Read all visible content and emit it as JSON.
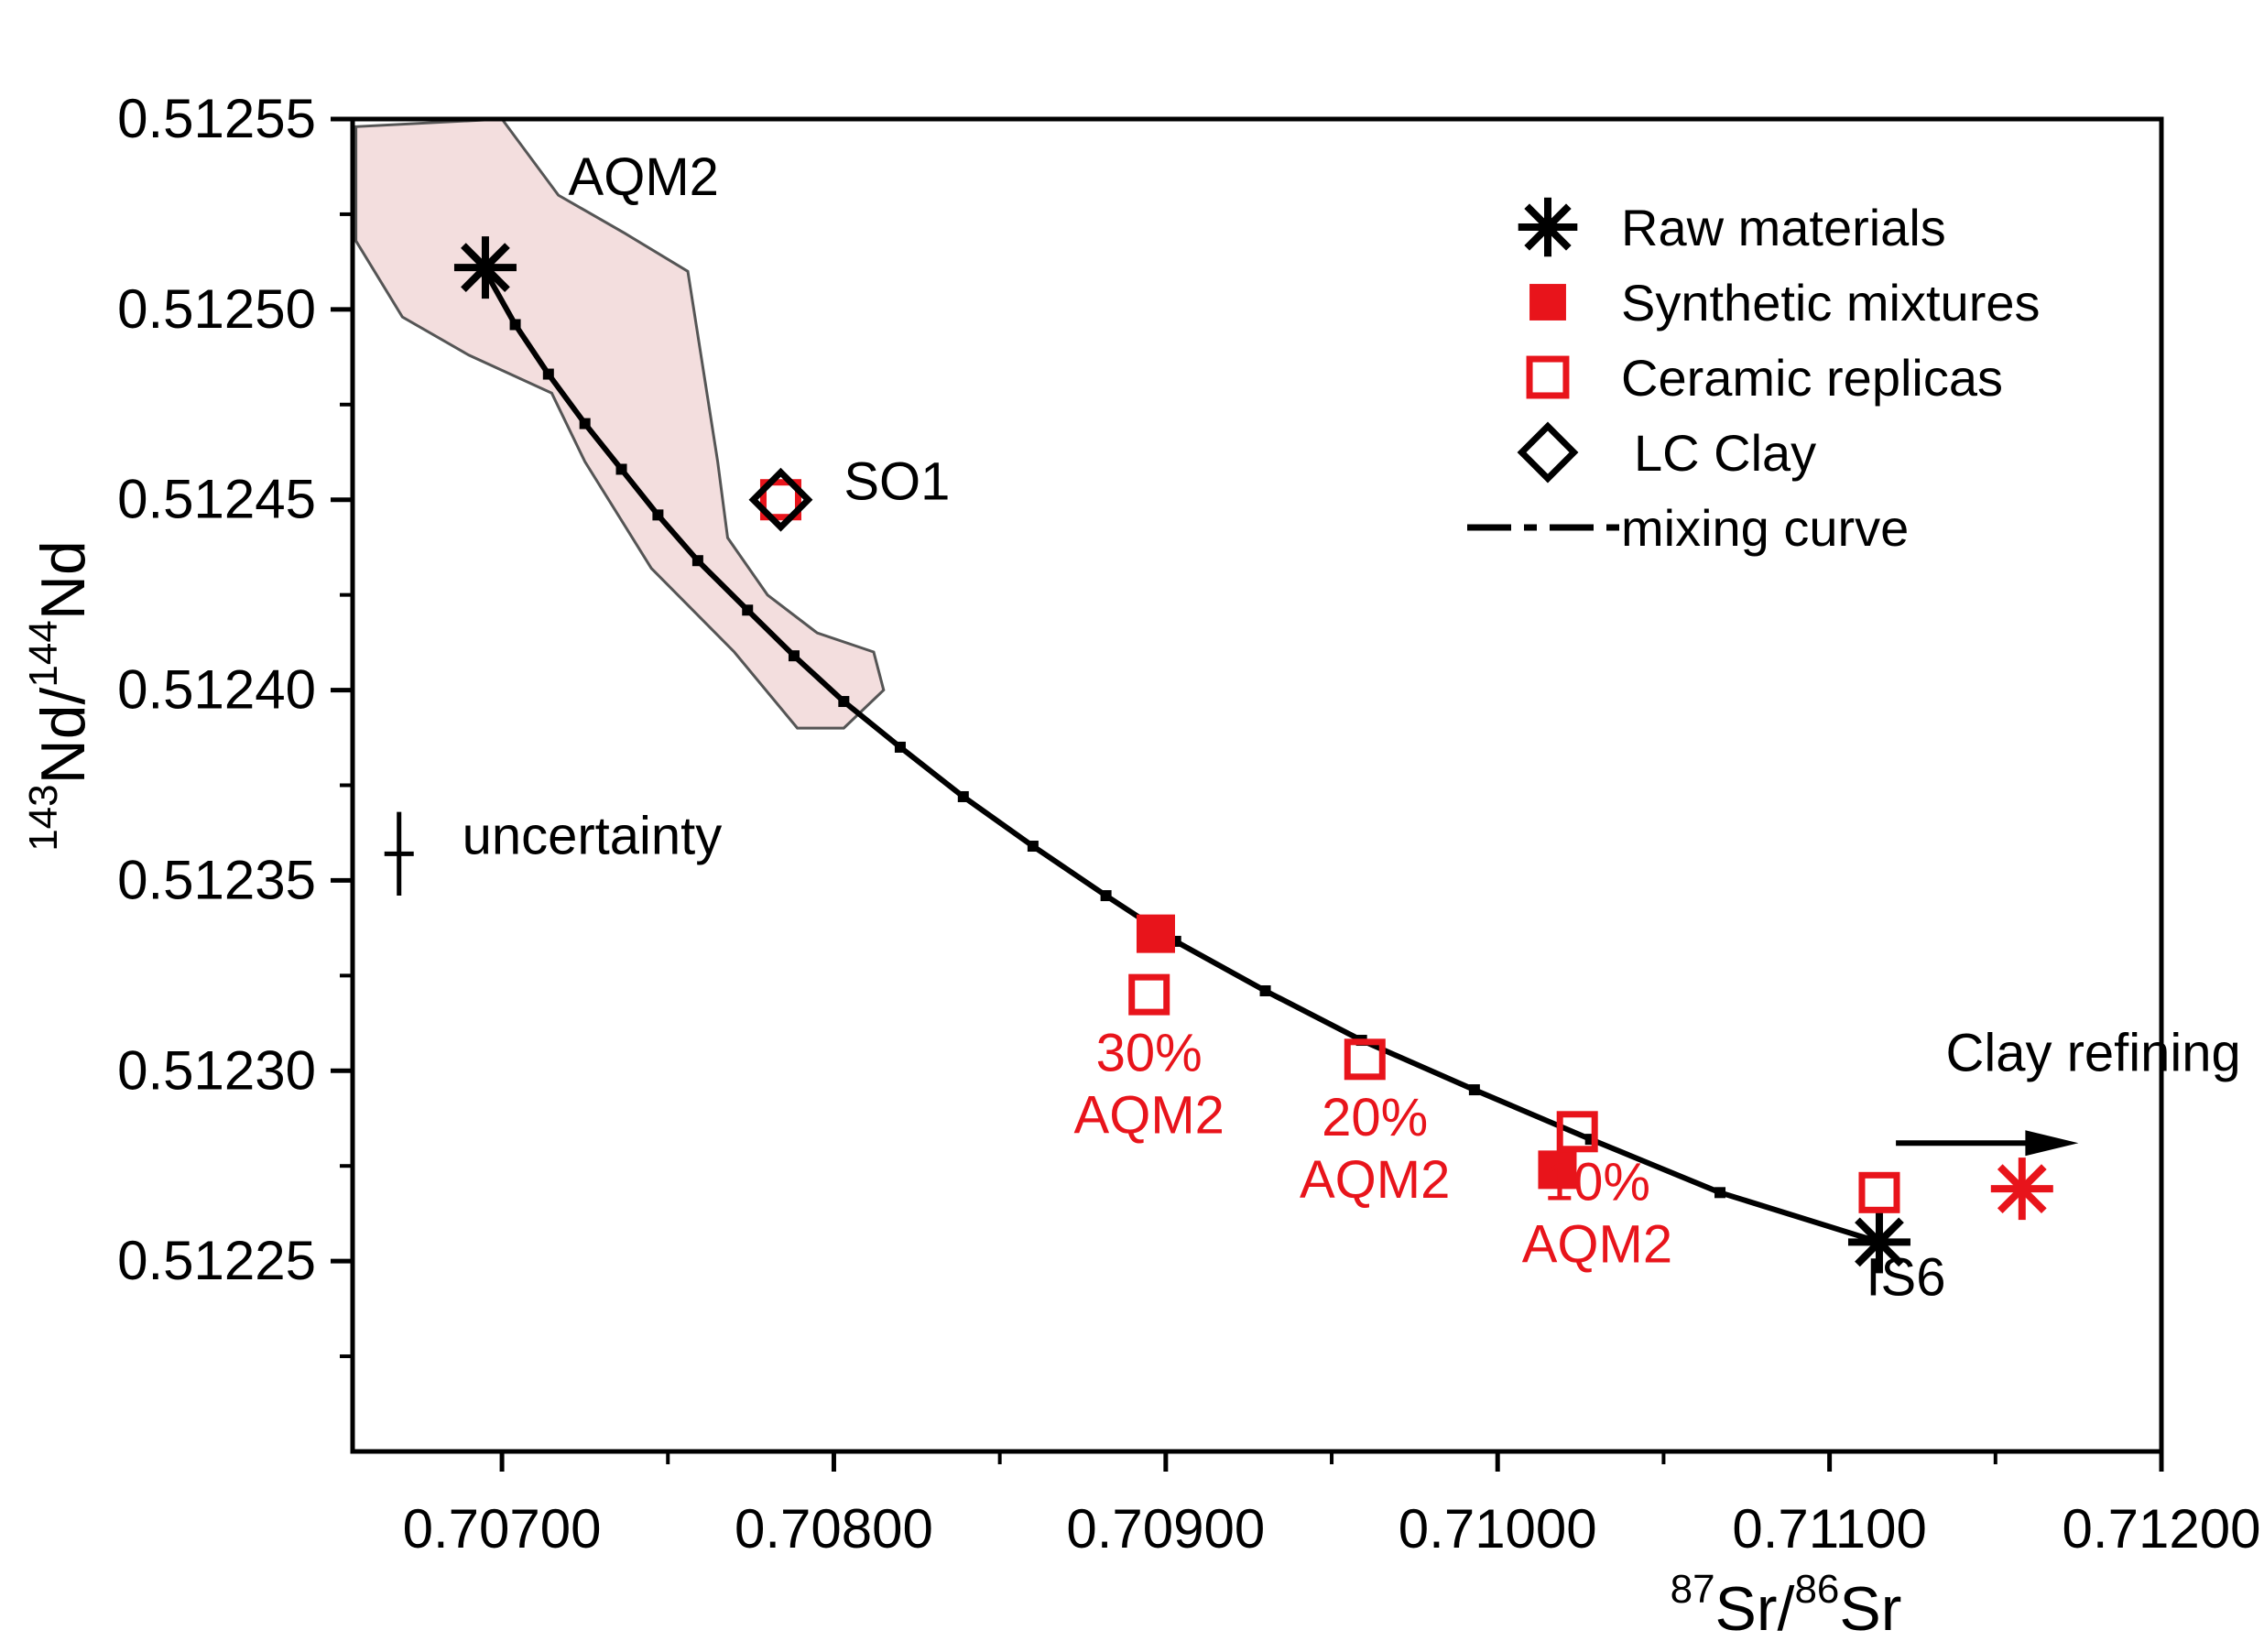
{
  "chart_data": {
    "type": "scatter",
    "xlabel": {
      "sup1": "87",
      "main1": "Sr/",
      "sup2": "86",
      "main2": "Sr"
    },
    "ylabel": {
      "sup1": "143",
      "main1": "Nd/",
      "sup2": "144",
      "main2": "Nd"
    },
    "xlim": [
      0.70655,
      0.712
    ],
    "ylim": [
      0.5122,
      0.51255
    ],
    "x_ticks": [
      "0.70700",
      "0.70800",
      "0.70900",
      "0.71000",
      "0.71100",
      "0.71200"
    ],
    "y_ticks": [
      "0.51225",
      "0.51230",
      "0.51235",
      "0.51240",
      "0.51245",
      "0.51250",
      "0.51255"
    ],
    "field": {
      "label": "AQM2",
      "fill": "#f3dede",
      "stroke": "#555555",
      "polygon": [
        [
          0.70656,
          0.512548
        ],
        [
          0.707,
          0.51255
        ],
        [
          0.70717,
          0.51253
        ],
        [
          0.70737,
          0.51252
        ],
        [
          0.70756,
          0.51251
        ],
        [
          0.70765,
          0.51246
        ],
        [
          0.70768,
          0.51244
        ],
        [
          0.7078,
          0.512425
        ],
        [
          0.70795,
          0.512415
        ],
        [
          0.70812,
          0.51241
        ],
        [
          0.70815,
          0.5124
        ],
        [
          0.70803,
          0.51239
        ],
        [
          0.70789,
          0.51239
        ],
        [
          0.7077,
          0.51241
        ],
        [
          0.70745,
          0.512432
        ],
        [
          0.70725,
          0.51246
        ],
        [
          0.70715,
          0.512478
        ],
        [
          0.7069,
          0.512488
        ],
        [
          0.7067,
          0.512498
        ],
        [
          0.70656,
          0.512518
        ]
      ]
    },
    "mixing_curve": {
      "name": "mixing curve",
      "x": [
        0.70695,
        0.70704,
        0.70714,
        0.70725,
        0.70736,
        0.70747,
        0.70759,
        0.70774,
        0.70788,
        0.70803,
        0.7082,
        0.70839,
        0.7086,
        0.70882,
        0.70903,
        0.7093,
        0.70959,
        0.70993,
        0.71028,
        0.71067,
        0.71115
      ],
      "y": [
        0.51251,
        0.512496,
        0.512483,
        0.51247,
        0.512458,
        0.512446,
        0.512434,
        0.512421,
        0.512409,
        0.512397,
        0.512385,
        0.512372,
        0.512359,
        0.512346,
        0.512334,
        0.512321,
        0.512308,
        0.512295,
        0.512282,
        0.512268,
        0.512255
      ]
    },
    "series": [
      {
        "name": "Raw materials",
        "color": "#000000",
        "marker": "asterisk",
        "points": [
          [
            0.70695,
            0.512511
          ],
          [
            0.71115,
            0.512255
          ]
        ]
      },
      {
        "name": "Synthetic mixtures",
        "color": "#e8141b",
        "marker": "filled-square",
        "points": [
          [
            0.70897,
            0.512336
          ],
          [
            0.71018,
            0.512274
          ]
        ]
      },
      {
        "name": "Ceramic replicas",
        "color": "#e8141b",
        "marker": "open-square",
        "points": [
          [
            0.70895,
            0.51232
          ],
          [
            0.7096,
            0.512303
          ],
          [
            0.71024,
            0.512284
          ],
          [
            0.71115,
            0.512268
          ],
          [
            0.70784,
            0.51245
          ]
        ]
      },
      {
        "name": "LC Clay",
        "color": "#000000",
        "marker": "open-diamond",
        "points": [
          [
            0.70784,
            0.51245
          ]
        ]
      }
    ],
    "extra_points": [
      {
        "marker": "asterisk",
        "color": "#e8141b",
        "point": [
          0.71158,
          0.512269
        ]
      }
    ],
    "legend": {
      "position": "top-right",
      "items": [
        {
          "label": "Raw materials",
          "marker": "asterisk",
          "color": "#000000"
        },
        {
          "label": "Synthetic mixtures",
          "marker": "filled-square",
          "color": "#e8141b"
        },
        {
          "label": "Ceramic replicas",
          "marker": "open-square",
          "color": "#e8141b"
        },
        {
          "label": "LC Clay",
          "marker": "open-diamond",
          "color": "#000000"
        },
        {
          "label": "mixing curve",
          "marker": "curve",
          "color": "#000000"
        }
      ]
    },
    "annotations": [
      {
        "id": "aqm2",
        "lines": [
          "AQM2"
        ],
        "color": "#000000",
        "at": [
          0.7072,
          0.51253
        ]
      },
      {
        "id": "so1",
        "lines": [
          "SO1"
        ],
        "color": "#000000",
        "at": [
          0.70803,
          0.51245
        ]
      },
      {
        "id": "uncertainty",
        "lines": [
          "uncertainty"
        ],
        "color": "#000000",
        "at": [
          0.70688,
          0.512357
        ]
      },
      {
        "id": "mix30",
        "lines": [
          "30%",
          "AQM2"
        ],
        "color": "#e8141b",
        "at": [
          0.70895,
          0.5123
        ]
      },
      {
        "id": "mix20",
        "lines": [
          "20%",
          "AQM2"
        ],
        "color": "#e8141b",
        "at": [
          0.70963,
          0.512283
        ]
      },
      {
        "id": "mix10",
        "lines": [
          "10%",
          "AQM2"
        ],
        "color": "#e8141b",
        "at": [
          0.7103,
          0.512266
        ]
      },
      {
        "id": "is6",
        "lines": [
          "IS6"
        ],
        "color": "#000000",
        "at": [
          0.71123,
          0.512241
        ]
      },
      {
        "id": "clay-refining",
        "lines": [
          "Clay refining"
        ],
        "color": "#000000",
        "at": [
          0.71135,
          0.5123
        ]
      }
    ],
    "uncertainty_bar": {
      "x": 0.70669,
      "y": 0.512357,
      "half_height": 1.1e-05
    },
    "refining_arrow": {
      "from": [
        0.7112,
        0.512281
      ],
      "to": [
        0.71175,
        0.512281
      ]
    },
    "grid": false
  }
}
